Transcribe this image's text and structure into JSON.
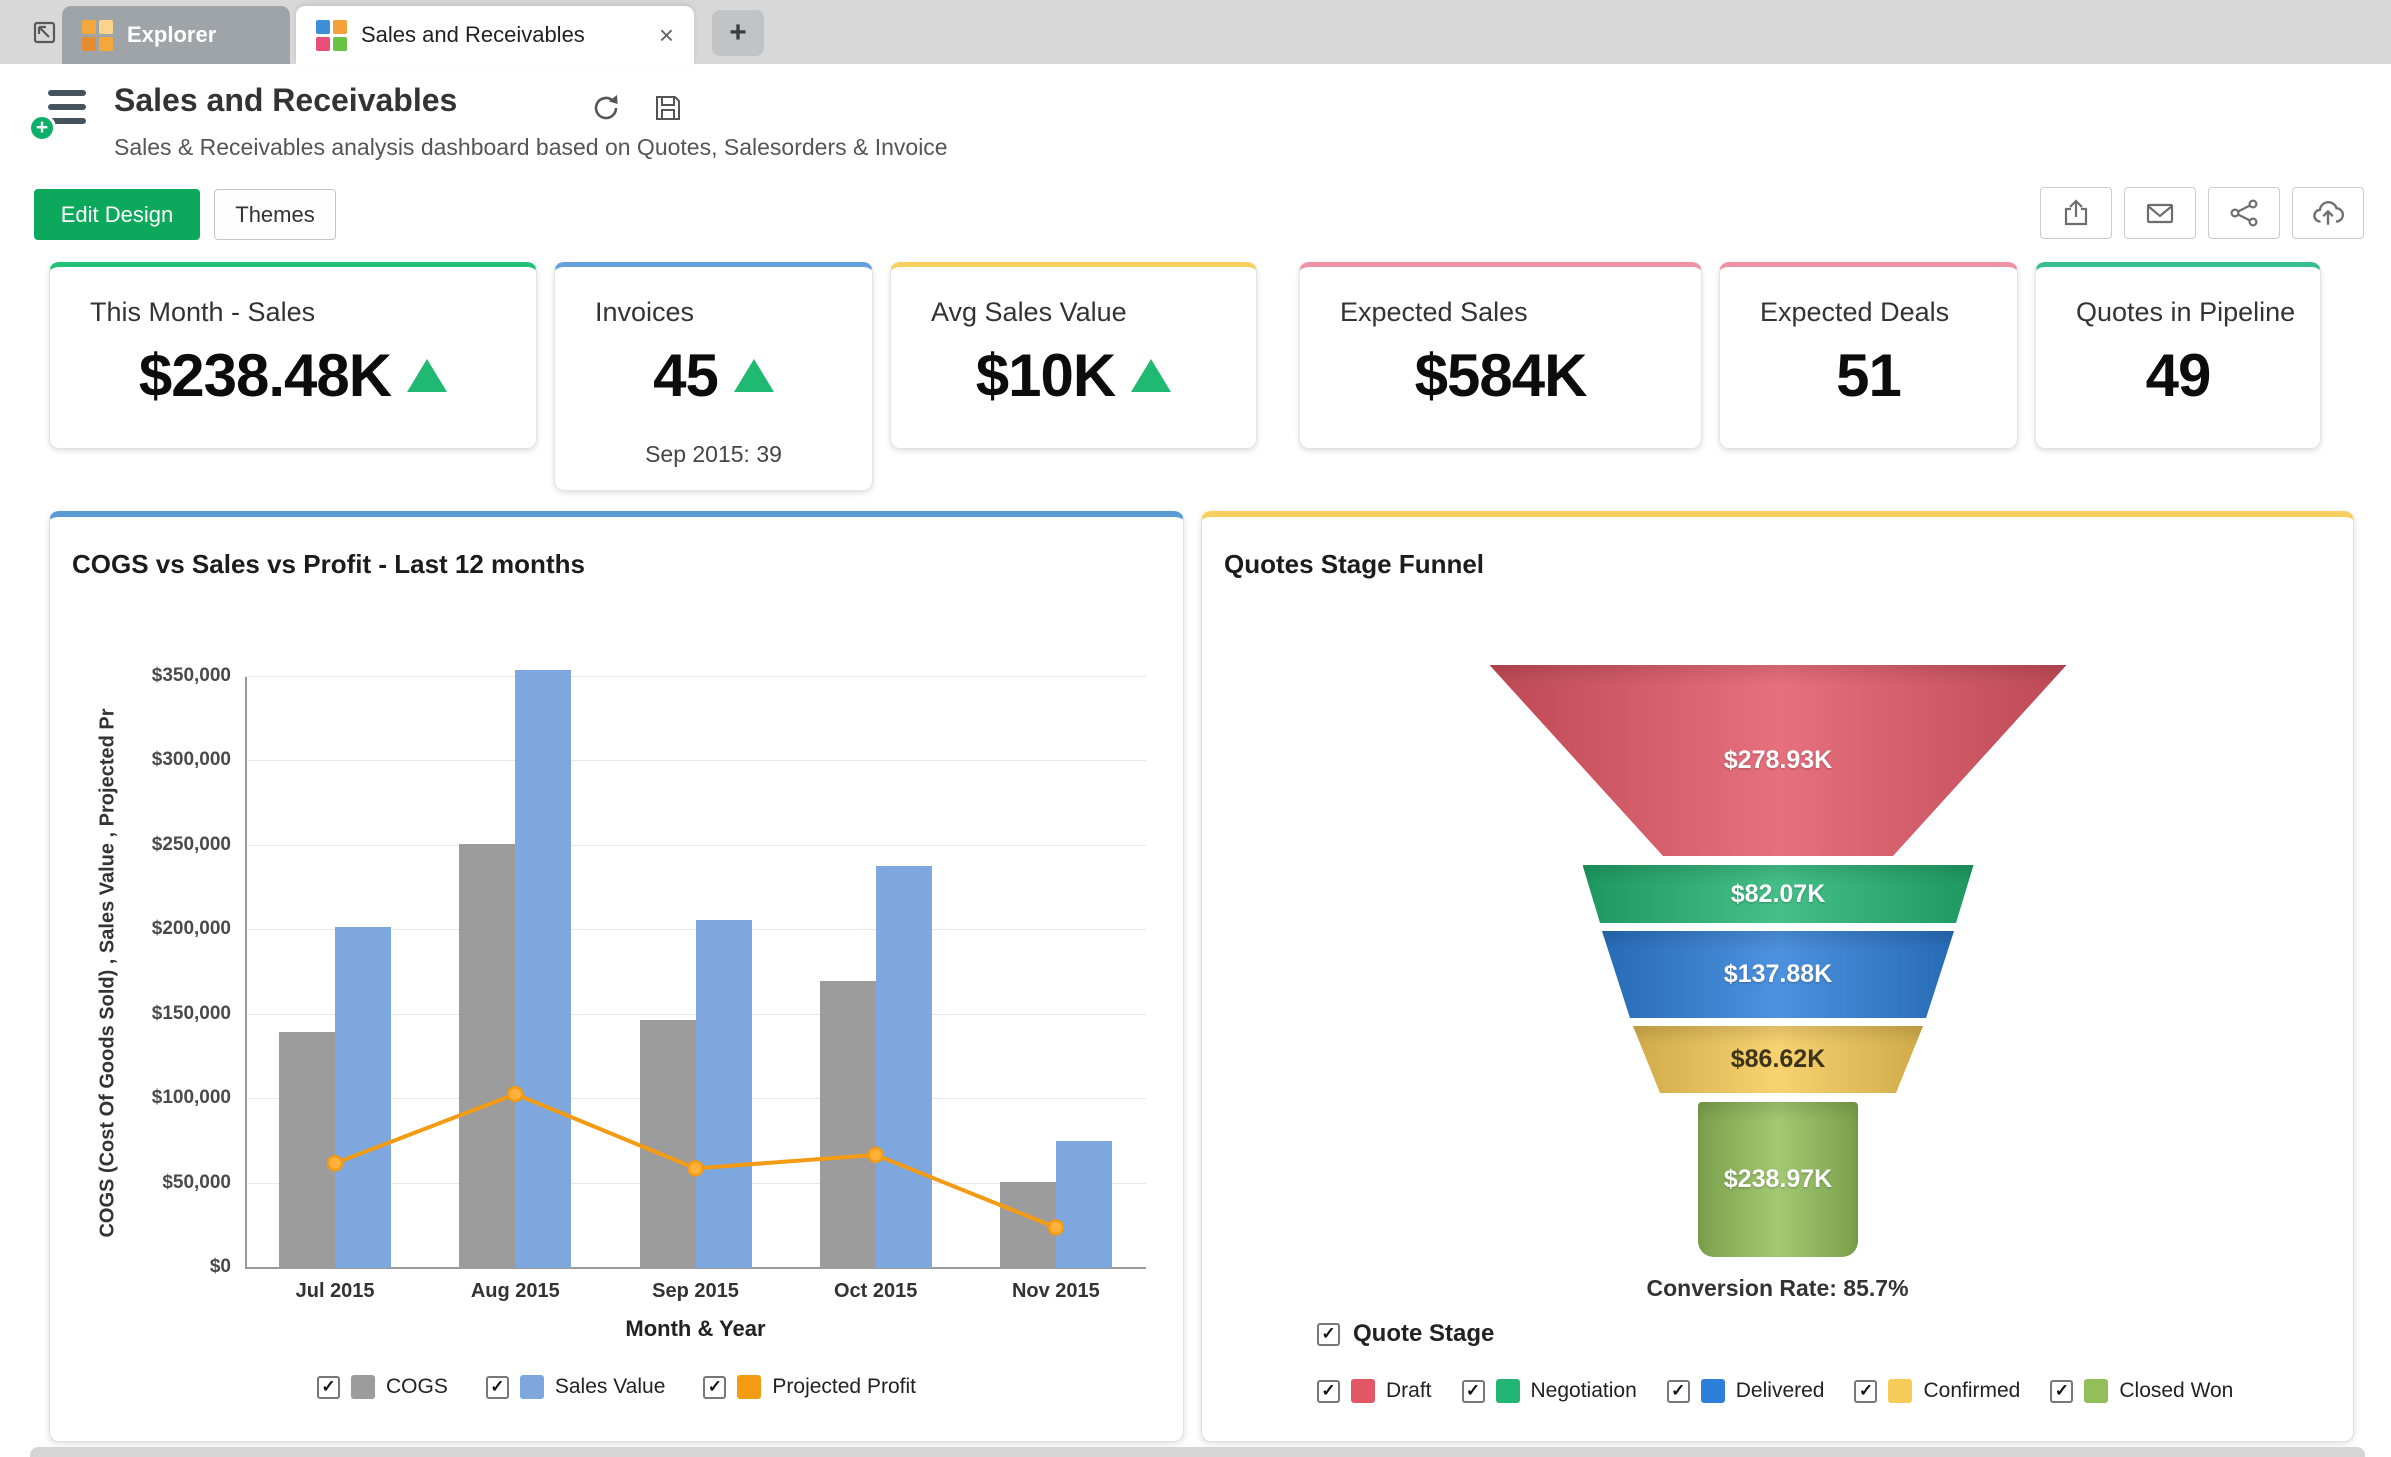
{
  "tabs": {
    "explorer": "Explorer",
    "active": "Sales and Receivables"
  },
  "header": {
    "title": "Sales and Receivables",
    "subtitle": "Sales & Receivables analysis dashboard based on Quotes, Salesorders & Invoice"
  },
  "toolbar": {
    "edit_design": "Edit Design",
    "themes": "Themes",
    "edit_design_color": "#0ca95c"
  },
  "icons": {
    "close_tab": "×",
    "new_tab": "+",
    "checkbox_check": "✓",
    "plus_badge": "+"
  },
  "kpis": [
    {
      "title": "This Month - Sales",
      "value": "$238.48K",
      "trend": "up",
      "accent": "#21c277"
    },
    {
      "title": "Invoices",
      "value": "45",
      "trend": "up",
      "note": "Sep 2015: 39",
      "accent": "#64a0dc"
    },
    {
      "title": "Avg Sales Value",
      "value": "$10K",
      "trend": "up",
      "accent": "#f6cf5e"
    },
    {
      "title": "Expected Sales",
      "value": "$584K",
      "accent": "#ef93a4"
    },
    {
      "title": "Expected Deals",
      "value": "51",
      "accent": "#ef93a4"
    },
    {
      "title": "Quotes in Pipeline",
      "value": "49",
      "accent": "#37c08e"
    }
  ],
  "chart_data": [
    {
      "type": "bar+line",
      "title": "COGS vs Sales vs Profit - Last 12 months",
      "accent": "#5b9bd5",
      "xlabel": "Month & Year",
      "ylabel": "COGS (Cost Of Goods Sold) , Sales Value , Projected Pr",
      "categories": [
        "Jul 2015",
        "Aug 2015",
        "Sep 2015",
        "Oct 2015",
        "Nov 2015"
      ],
      "series": [
        {
          "name": "COGS",
          "type": "bar",
          "color": "#9c9c9c",
          "values": [
            140000,
            251000,
            147000,
            170000,
            51000
          ]
        },
        {
          "name": "Sales Value",
          "type": "bar",
          "color": "#7da7dd",
          "values": [
            202000,
            354000,
            206000,
            238000,
            75000
          ]
        },
        {
          "name": "Projected Profit",
          "type": "line",
          "color": "#f39b12",
          "values": [
            62000,
            103000,
            59000,
            67000,
            24000
          ]
        }
      ],
      "ylim": [
        0,
        350000
      ],
      "ytick_step": 50000,
      "ytick_labels": [
        "$0",
        "$50,000",
        "$100,000",
        "$150,000",
        "$200,000",
        "$250,000",
        "$300,000",
        "$350,000"
      ],
      "grid": true,
      "legend_position": "bottom"
    },
    {
      "type": "funnel",
      "title": "Quotes Stage Funnel",
      "accent": "#f6cf5e",
      "stages": [
        {
          "name": "Draft",
          "value": "$278.93K",
          "color": "#e25766"
        },
        {
          "name": "Negotiation",
          "value": "$82.07K",
          "color": "#23b573"
        },
        {
          "name": "Delivered",
          "value": "$137.88K",
          "color": "#2e7fd9"
        },
        {
          "name": "Confirmed",
          "value": "$86.62K",
          "color": "#f7cb57"
        },
        {
          "name": "Closed Won",
          "value": "$238.97K",
          "color": "#93bf5a"
        }
      ],
      "conversion_rate": "Conversion Rate: 85.7%",
      "filter_label": "Quote Stage",
      "legend_position": "bottom"
    }
  ]
}
